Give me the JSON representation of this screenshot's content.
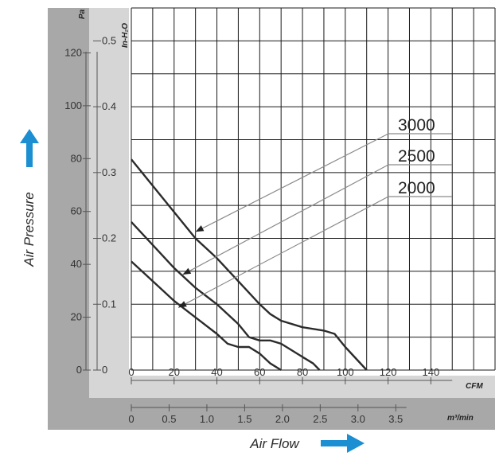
{
  "chart_data": {
    "type": "line",
    "title": "",
    "xlabel": "Air Flow",
    "ylabel": "Air Pressure",
    "x_units": {
      "primary": "CFM",
      "secondary": "m³/min"
    },
    "y_units": {
      "primary": "Pa",
      "secondary": "In-H₂O"
    },
    "xlim": [
      0,
      170
    ],
    "ylim": [
      0,
      0.55
    ],
    "grid": true,
    "legend": "annotation labels with leader arrows, upper right",
    "x_ticks": [
      0,
      20,
      40,
      60,
      80,
      100,
      120,
      140
    ],
    "x_tick_labels": [
      "0",
      "20",
      "40",
      "60",
      "80",
      "100",
      "120",
      "140"
    ],
    "x2_ticks": [
      0,
      0.5,
      1.0,
      1.5,
      2.0,
      2.5,
      3.0,
      3.5
    ],
    "x2_tick_labels": [
      "0",
      "0.5",
      "1.0",
      "1.5",
      "2.0",
      "2.5",
      "3.0",
      "3.5"
    ],
    "y_ticks": [
      0,
      0.1,
      0.2,
      0.3,
      0.4,
      0.5
    ],
    "y_tick_labels": [
      "0",
      "0.1",
      "0.2",
      "0.3",
      "0.4",
      "0.5"
    ],
    "y2_ticks": [
      0,
      20,
      40,
      60,
      80,
      100,
      120
    ],
    "y2_tick_labels": [
      "0",
      "20",
      "40",
      "60",
      "80",
      "100",
      "120"
    ],
    "series": [
      {
        "name": "3000",
        "x": [
          0,
          10,
          20,
          30,
          40,
          50,
          60,
          65,
          70,
          80,
          90,
          95,
          100,
          110
        ],
        "y": [
          0.32,
          0.28,
          0.24,
          0.2,
          0.17,
          0.135,
          0.1,
          0.085,
          0.075,
          0.065,
          0.06,
          0.055,
          0.035,
          0
        ]
      },
      {
        "name": "2500",
        "x": [
          0,
          10,
          20,
          30,
          40,
          50,
          55,
          60,
          65,
          70,
          80,
          85,
          88
        ],
        "y": [
          0.225,
          0.19,
          0.155,
          0.125,
          0.1,
          0.07,
          0.05,
          0.045,
          0.045,
          0.04,
          0.02,
          0.01,
          0
        ]
      },
      {
        "name": "2000",
        "x": [
          0,
          10,
          20,
          30,
          40,
          45,
          50,
          55,
          60,
          65,
          70
        ],
        "y": [
          0.165,
          0.135,
          0.105,
          0.08,
          0.055,
          0.04,
          0.035,
          0.035,
          0.025,
          0.01,
          0
        ]
      }
    ],
    "annotations": [
      {
        "label": "3000",
        "arrow_to": {
          "x": 30,
          "y": 0.21
        }
      },
      {
        "label": "2500",
        "arrow_to": {
          "x": 24,
          "y": 0.145
        }
      },
      {
        "label": "2000",
        "arrow_to": {
          "x": 22,
          "y": 0.095
        }
      }
    ]
  },
  "colors": {
    "outer_bg": "#a8a8a8",
    "inner_bg": "#d6d6d6",
    "grid": "#1a1a1a",
    "curve": "#2b2b2b",
    "leader": "#8a8a8a",
    "arrow_icon": "#1b8fd2"
  },
  "icons": {
    "up": "arrow-up-icon",
    "right": "arrow-right-icon"
  }
}
